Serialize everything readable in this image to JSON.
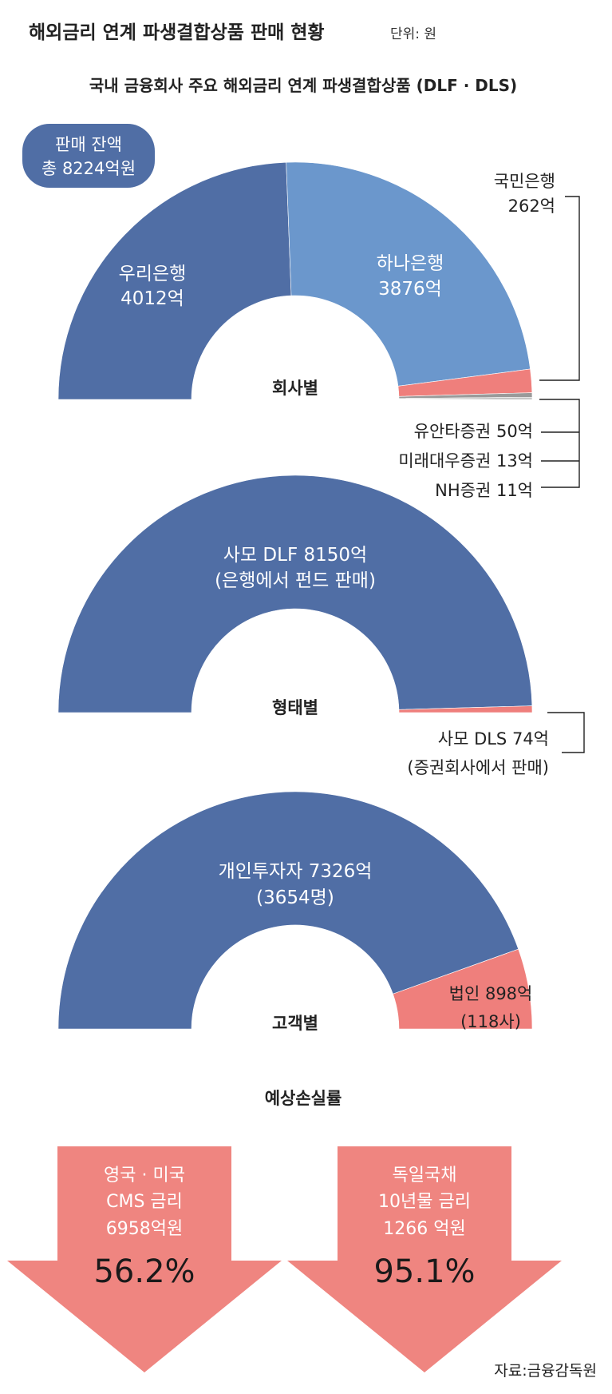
{
  "header": {
    "title": "해외금리 연계 파생결합상품 판매 현황",
    "unit": "단위: 원"
  },
  "subtitle": "국내 금융회사 주요 해외금리 연계 파생결합상품 (DLF · DLS)",
  "total_badge": {
    "line1": "판매 잔액",
    "line2": "총 8224억원"
  },
  "colors": {
    "dark_blue": "#506ea5",
    "light_blue": "#6b97cc",
    "salmon": "#ef7f7c",
    "gray": "#9a9a9a",
    "text": "#222222"
  },
  "chart_data": [
    {
      "type": "pie",
      "title": "회사별",
      "style": "half-donut",
      "slices": [
        {
          "name": "우리은행",
          "label_value": "4012억",
          "value": 4012
        },
        {
          "name": "하나은행",
          "label_value": "3876억",
          "value": 3876
        },
        {
          "name": "국민은행",
          "label_value": "262억",
          "value": 262
        },
        {
          "name": "유안타증권",
          "label_value": "50억",
          "value": 50
        },
        {
          "name": "미래대우증권",
          "label_value": "13억",
          "value": 13
        },
        {
          "name": "NH증권",
          "label_value": "11억",
          "value": 11
        }
      ]
    },
    {
      "type": "pie",
      "title": "형태별",
      "style": "half-donut",
      "slices": [
        {
          "name": "사모 DLF",
          "label_value": "8150억",
          "note": "(은행에서 펀드 판매)",
          "value": 8150
        },
        {
          "name": "사모 DLS",
          "label_value": "74억",
          "note": "(증권회사에서 판매)",
          "value": 74
        }
      ]
    },
    {
      "type": "pie",
      "title": "고객별",
      "style": "half-donut",
      "slices": [
        {
          "name": "개인투자자",
          "label_value": "7326억",
          "note": "(3654명)",
          "value": 7326
        },
        {
          "name": "법인",
          "label_value": "898억",
          "note": "(118사)",
          "value": 898
        }
      ]
    }
  ],
  "loss_section": {
    "title": "예상손실률",
    "items": [
      {
        "line1": "영국 · 미국",
        "line2": "CMS 금리",
        "line3": "6958억원",
        "rate": "56.2%",
        "value": 56.2
      },
      {
        "line1": "독일국채",
        "line2": "10년물 금리",
        "line3": "1266 억원",
        "rate": "95.1%",
        "value": 95.1
      }
    ]
  },
  "source": "자료:금융감독원"
}
